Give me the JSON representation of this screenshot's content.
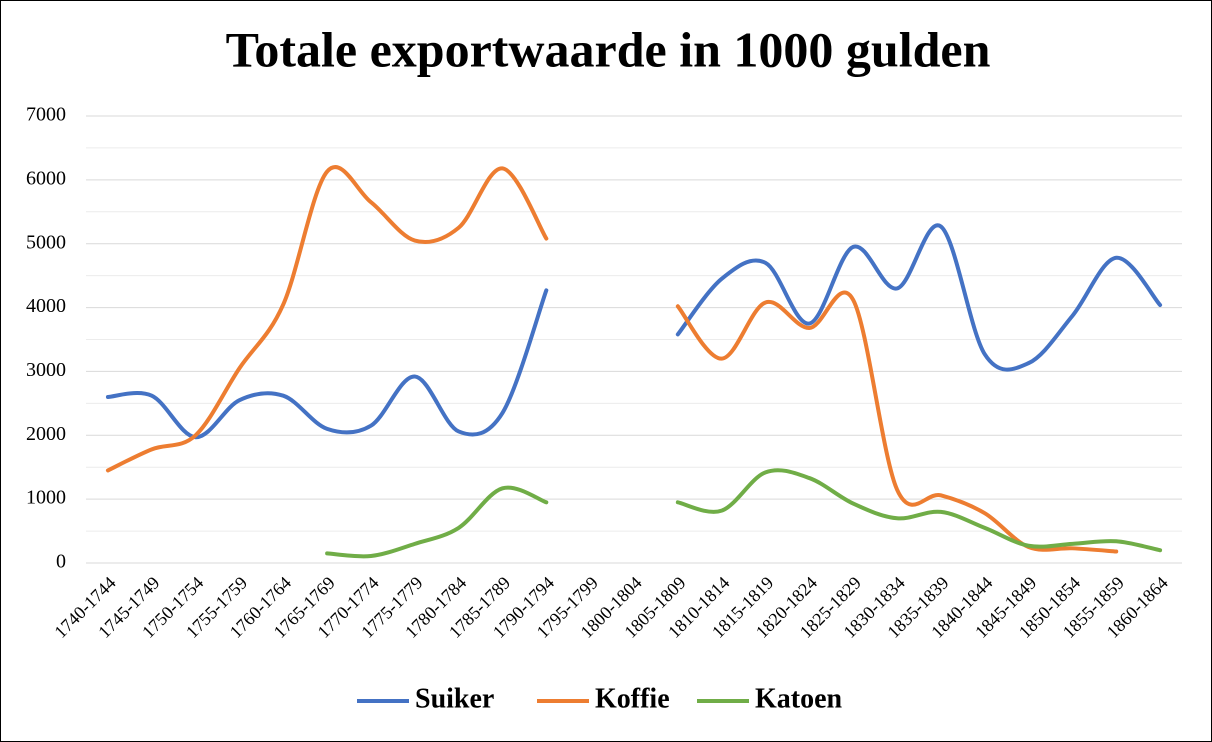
{
  "chart_data": {
    "type": "line",
    "title": "Totale exportwaarde in 1000 gulden",
    "categories": [
      "1740-1744",
      "1745-1749",
      "1750-1754",
      "1755-1759",
      "1760-1764",
      "1765-1769",
      "1770-1774",
      "1775-1779",
      "1780-1784",
      "1785-1789",
      "1790-1794",
      "1795-1799",
      "1800-1804",
      "1805-1809",
      "1810-1814",
      "1815-1819",
      "1820-1824",
      "1825-1829",
      "1830-1834",
      "1835-1839",
      "1840-1844",
      "1845-1849",
      "1850-1854",
      "1855-1859",
      "1860-1864"
    ],
    "series": [
      {
        "name": "Suiker",
        "color": "#4472c4",
        "values": [
          2600,
          2620,
          1970,
          2550,
          2620,
          2100,
          2150,
          2920,
          2060,
          2350,
          4270,
          null,
          null,
          3580,
          4450,
          4700,
          3750,
          4950,
          4300,
          5270,
          3270,
          3130,
          3870,
          4780,
          4040
        ]
      },
      {
        "name": "Koffie",
        "color": "#ed7d31",
        "values": [
          1450,
          1780,
          2000,
          3050,
          4050,
          6130,
          5650,
          5050,
          5250,
          6180,
          5080,
          null,
          null,
          4020,
          3200,
          4080,
          3680,
          4120,
          1150,
          1060,
          780,
          250,
          230,
          180,
          null
        ]
      },
      {
        "name": "Katoen",
        "color": "#70ad47",
        "values": [
          null,
          null,
          null,
          null,
          null,
          150,
          110,
          300,
          550,
          1170,
          950,
          null,
          null,
          950,
          820,
          1420,
          1330,
          930,
          700,
          800,
          550,
          270,
          300,
          340,
          200
        ]
      }
    ],
    "ylim": [
      0,
      7000
    ],
    "yticks": [
      0,
      1000,
      2000,
      3000,
      4000,
      5000,
      6000,
      7000
    ],
    "yminorticks": [
      500,
      1500,
      2500,
      3500,
      4500,
      5500,
      6500
    ],
    "grid": true,
    "legend": "bottom"
  }
}
